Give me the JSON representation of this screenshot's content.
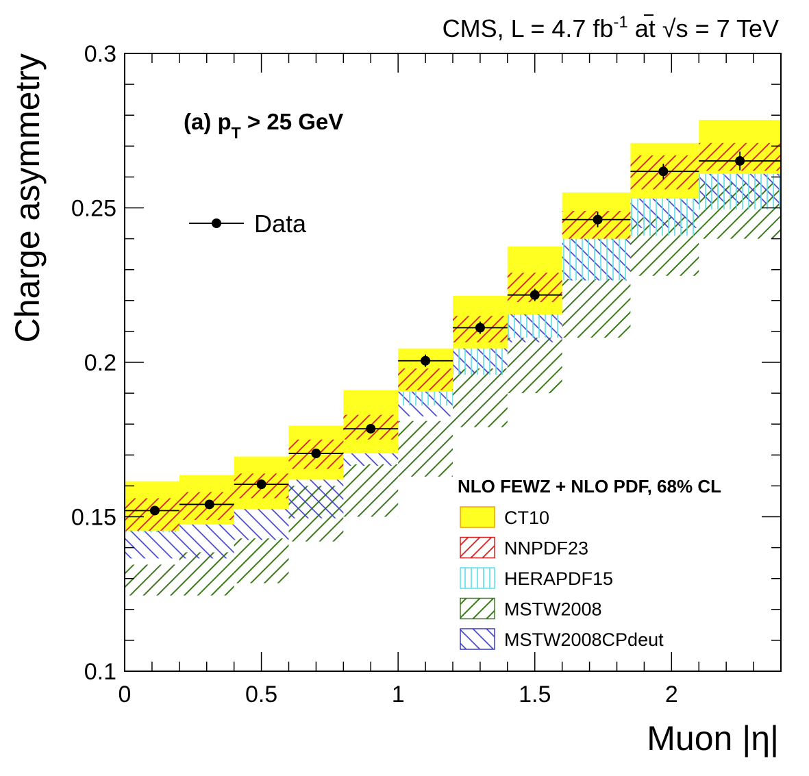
{
  "chart_data": {
    "type": "bar",
    "header_left": "CMS,  L = 4.7 fb",
    "header_exp": "-1",
    "header_mid": " at ",
    "header_right": "s = 7 TeV",
    "ylabel": "Charge asymmetry",
    "xlabel": "Muon |η|",
    "annotation_prefix": "(a)  p",
    "annotation_sub": "T",
    "annotation_suffix": " > 25 GeV",
    "data_legend": "Data",
    "legend_title": "NLO FEWZ + NLO PDF, 68% CL",
    "xlim": [
      0,
      2.4
    ],
    "ylim": [
      0.1,
      0.3
    ],
    "x_ticks": [
      "0",
      "0.5",
      "1",
      "1.5",
      "2"
    ],
    "x_tick_values": [
      0,
      0.5,
      1,
      1.5,
      2
    ],
    "y_ticks": [
      "0.1",
      "0.15",
      "0.2",
      "0.25",
      "0.3"
    ],
    "y_tick_values": [
      0.1,
      0.15,
      0.2,
      0.25,
      0.3
    ],
    "bins": [
      [
        0.0,
        0.2
      ],
      [
        0.2,
        0.4
      ],
      [
        0.4,
        0.6
      ],
      [
        0.6,
        0.8
      ],
      [
        0.8,
        1.0
      ],
      [
        1.0,
        1.2
      ],
      [
        1.2,
        1.4
      ],
      [
        1.4,
        1.6
      ],
      [
        1.6,
        1.85
      ],
      [
        1.85,
        2.1
      ],
      [
        2.1,
        2.4
      ]
    ],
    "data": {
      "x": [
        0.11,
        0.31,
        0.5,
        0.7,
        0.9,
        1.1,
        1.3,
        1.5,
        1.73,
        1.97,
        2.25
      ],
      "y": [
        0.152,
        0.154,
        0.1605,
        0.1705,
        0.1785,
        0.2005,
        0.2112,
        0.2218,
        0.2462,
        0.2618,
        0.2652
      ],
      "err": [
        0.0015,
        0.0015,
        0.0015,
        0.0015,
        0.0015,
        0.002,
        0.002,
        0.002,
        0.0025,
        0.0025,
        0.003
      ]
    },
    "series": [
      {
        "name": "MSTW2008",
        "color": "#3d7a1e",
        "pattern": "diag-back",
        "low": [
          0.1245,
          0.1245,
          0.1285,
          0.142,
          0.15,
          0.163,
          0.179,
          0.19,
          0.208,
          0.228,
          0.24
        ],
        "high": [
          0.1345,
          0.1385,
          0.143,
          0.16,
          0.167,
          0.181,
          0.198,
          0.208,
          0.227,
          0.247,
          0.258
        ]
      },
      {
        "name": "MSTW2008CPdeut",
        "color": "#3a3ac8",
        "pattern": "diag-fwd",
        "low": [
          0.1365,
          0.1365,
          0.1425,
          0.1495,
          0.1665,
          0.1825,
          0.1965,
          0.2065,
          0.2265,
          0.2435,
          0.2515
        ],
        "high": [
          0.1535,
          0.155,
          0.159,
          0.1655,
          0.178,
          0.194,
          0.208,
          0.222,
          0.24,
          0.258,
          0.264
        ]
      },
      {
        "name": "HERAPDF15",
        "color": "#55e0e8",
        "pattern": "vert",
        "low": [
          0.145,
          0.148,
          0.155,
          0.163,
          0.171,
          0.186,
          0.196,
          0.208,
          0.2265,
          0.241,
          0.2495
        ],
        "high": [
          0.157,
          0.159,
          0.165,
          0.173,
          0.184,
          0.198,
          0.21,
          0.225,
          0.245,
          0.26,
          0.266
        ]
      },
      {
        "name": "CT10",
        "color": "#ffff22",
        "pattern": "solid",
        "low": [
          0.1455,
          0.1475,
          0.1525,
          0.162,
          0.1705,
          0.1905,
          0.2045,
          0.2155,
          0.24,
          0.253,
          0.261
        ],
        "high": [
          0.1615,
          0.1635,
          0.1695,
          0.1795,
          0.191,
          0.2045,
          0.2215,
          0.2375,
          0.255,
          0.271,
          0.2785
        ]
      },
      {
        "name": "NNPDF23",
        "color": "#d42020",
        "pattern": "diag-back",
        "low": [
          0.1455,
          0.149,
          0.156,
          0.1655,
          0.175,
          0.191,
          0.2065,
          0.2195,
          0.24,
          0.256,
          0.262
        ],
        "high": [
          0.156,
          0.158,
          0.164,
          0.175,
          0.183,
          0.198,
          0.215,
          0.229,
          0.249,
          0.267,
          0.271
        ]
      }
    ],
    "legend_order": [
      "CT10",
      "NNPDF23",
      "HERAPDF15",
      "MSTW2008",
      "MSTW2008CPdeut"
    ],
    "grid": false,
    "legend_position": "bottom-right"
  }
}
